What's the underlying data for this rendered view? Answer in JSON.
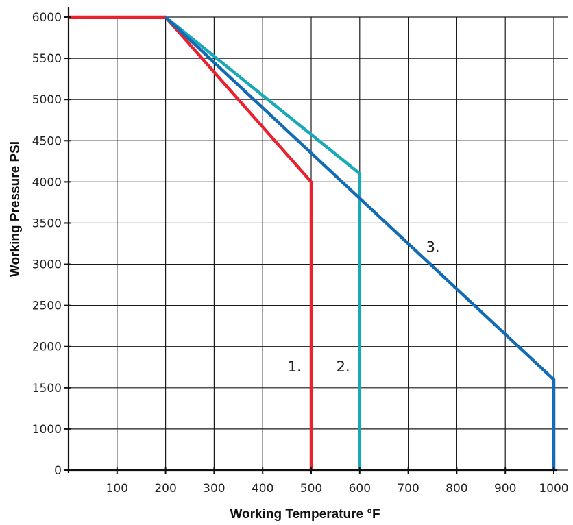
{
  "chart_data": {
    "type": "line",
    "xlabel": "Working Temperature °F",
    "ylabel": "Working Pressure PSI",
    "xlim": [
      0,
      1000
    ],
    "ylim": [
      0,
      6000
    ],
    "x_ticks": [
      100,
      200,
      300,
      400,
      500,
      600,
      700,
      800,
      900,
      1000
    ],
    "y_ticks": [
      0,
      1000,
      1500,
      2000,
      2500,
      3000,
      3500,
      4000,
      4500,
      5000,
      5500,
      6000
    ],
    "x_tick_labels": [
      "100",
      "200",
      "300",
      "400",
      "500",
      "600",
      "700",
      "800",
      "900",
      "1000"
    ],
    "y_tick_labels": [
      "0",
      "1000",
      "1500",
      "2000",
      "2500",
      "3000",
      "3500",
      "4000",
      "4500",
      "5000",
      "5500",
      "6000"
    ],
    "grid": true,
    "legend": "none",
    "series": [
      {
        "name": "1.",
        "color": "#e8232f",
        "points": [
          [
            0,
            6000
          ],
          [
            200,
            6000
          ],
          [
            500,
            4000
          ],
          [
            500,
            0
          ]
        ],
        "label_at": [
          480,
          1700
        ]
      },
      {
        "name": "2.",
        "color": "#18a9b8",
        "points": [
          [
            200,
            6000
          ],
          [
            600,
            4100
          ],
          [
            600,
            0
          ]
        ],
        "label_at": [
          580,
          1700
        ]
      },
      {
        "name": "3.",
        "color": "#126cb5",
        "points": [
          [
            200,
            6000
          ],
          [
            1000,
            1600
          ],
          [
            1000,
            0
          ]
        ],
        "label_at": [
          765,
          3150
        ]
      }
    ]
  }
}
